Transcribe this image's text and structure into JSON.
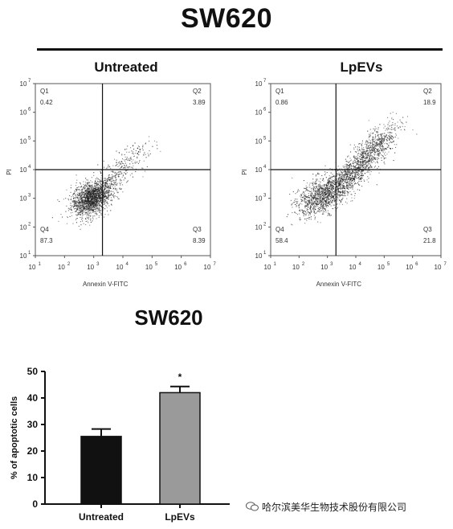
{
  "header": {
    "title": "SW620"
  },
  "watermark": "哈尔滨美华生物技术股份有限公司",
  "chart_data": [
    {
      "type": "scatter",
      "panel_title": "Untreated",
      "xlabel": "Annexin V-FITC",
      "ylabel": "PI",
      "scale": "log",
      "xlim": [
        10,
        10000000
      ],
      "ylim": [
        10,
        10000000
      ],
      "x_ticks": [
        "10",
        "10",
        "10",
        "10",
        "10",
        "10",
        "10"
      ],
      "x_tick_exp": [
        "1",
        "2",
        "3",
        "4",
        "5",
        "6",
        "7"
      ],
      "y_ticks": [
        "10",
        "10",
        "10",
        "10",
        "10",
        "10",
        "10"
      ],
      "y_tick_exp": [
        "1",
        "2",
        "3",
        "4",
        "5",
        "6",
        "7"
      ],
      "gate": {
        "x": 3.3,
        "y": 4.0
      },
      "quadrants": [
        {
          "name": "Q1",
          "value": "0.42"
        },
        {
          "name": "Q2",
          "value": "3.89"
        },
        {
          "name": "Q3",
          "value": "8.39"
        },
        {
          "name": "Q4",
          "value": "87.3"
        }
      ],
      "grid": false
    },
    {
      "type": "scatter",
      "panel_title": "LpEVs",
      "xlabel": "Annexin V-FITC",
      "ylabel": "PI",
      "scale": "log",
      "xlim": [
        10,
        10000000
      ],
      "ylim": [
        10,
        10000000
      ],
      "x_ticks": [
        "10",
        "10",
        "10",
        "10",
        "10",
        "10",
        "10"
      ],
      "x_tick_exp": [
        "1",
        "2",
        "3",
        "4",
        "5",
        "6",
        "7"
      ],
      "y_ticks": [
        "10",
        "10",
        "10",
        "10",
        "10",
        "10",
        "10"
      ],
      "y_tick_exp": [
        "1",
        "2",
        "3",
        "4",
        "5",
        "6",
        "7"
      ],
      "gate": {
        "x": 3.3,
        "y": 4.0
      },
      "quadrants": [
        {
          "name": "Q1",
          "value": "0.86"
        },
        {
          "name": "Q2",
          "value": "18.9"
        },
        {
          "name": "Q3",
          "value": "21.8"
        },
        {
          "name": "Q4",
          "value": "58.4"
        }
      ],
      "grid": false
    },
    {
      "type": "bar",
      "title": "SW620",
      "categories": [
        "Untreated",
        "LpEVs"
      ],
      "values": [
        25.5,
        42
      ],
      "errors": [
        2.8,
        2.3
      ],
      "colors": [
        "#111111",
        "#9a9a9a"
      ],
      "ylabel": "% of apoptotic cells",
      "ylim": [
        0,
        50
      ],
      "y_ticks": [
        "0",
        "10",
        "20",
        "30",
        "40",
        "50"
      ],
      "significance": [
        "",
        "*"
      ]
    }
  ]
}
